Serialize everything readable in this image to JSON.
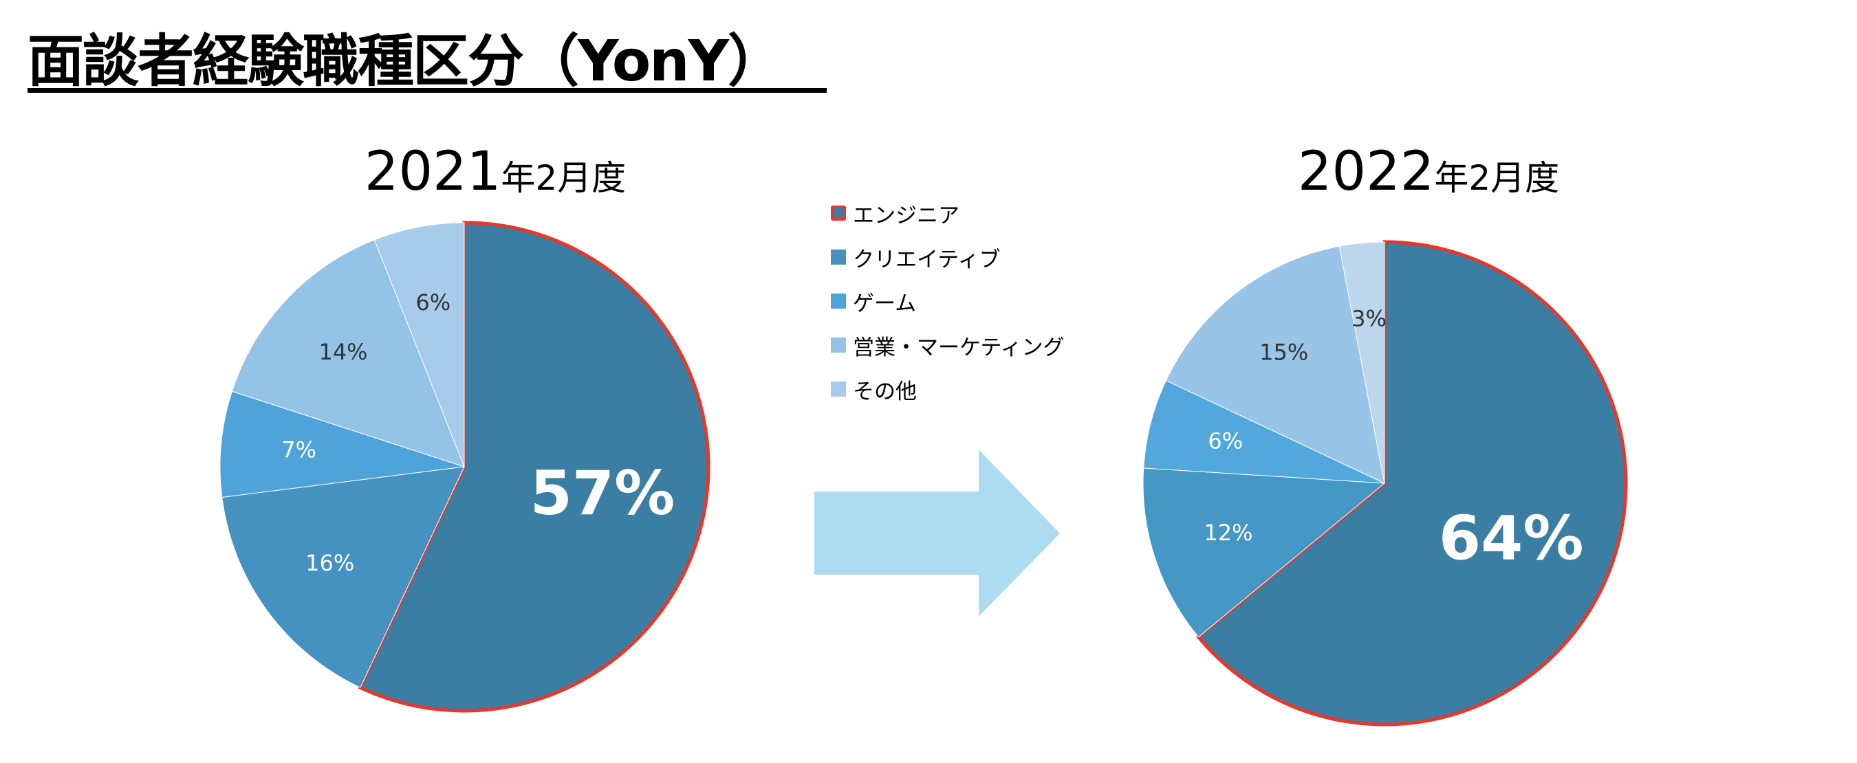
{
  "title": "面談者経験職種区分（YonY）",
  "legend": [
    {
      "label": "エンジニア",
      "color": "#3a7ea3",
      "highlight": "#e8372a"
    },
    {
      "label": "クリエイティブ",
      "color": "#4591c0"
    },
    {
      "label": "ゲーム",
      "color": "#4ea3d8"
    },
    {
      "label": "営業・マーケティング",
      "color": "#93c3e6"
    },
    {
      "label": "その他",
      "color": "#a7cbea"
    }
  ],
  "chart_data": [
    {
      "type": "pie",
      "title_year": "2021",
      "title_suffix": "年2月度",
      "categories": [
        "エンジニア",
        "クリエイティブ",
        "ゲーム",
        "営業・マーケティング",
        "その他"
      ],
      "values": [
        57,
        16,
        7,
        14,
        6
      ],
      "labels": [
        "57%",
        "16%",
        "7%",
        "14%",
        "6%"
      ],
      "colors": [
        "#3a7ea3",
        "#4591c0",
        "#4ea3d8",
        "#93c3e6",
        "#a7cbea"
      ],
      "highlighted": "エンジニア"
    },
    {
      "type": "pie",
      "title_year": "2022",
      "title_suffix": "年2月度",
      "categories": [
        "エンジニア",
        "クリエイティブ",
        "ゲーム",
        "営業・マーケティング",
        "その他"
      ],
      "values": [
        64,
        12,
        6,
        15,
        3
      ],
      "labels": [
        "64%",
        "12%",
        "6%",
        "15%",
        "3%"
      ],
      "colors": [
        "#3a7ea3",
        "#4597c5",
        "#52a8dd",
        "#97c4e7",
        "#bcd6ee"
      ],
      "highlighted": "エンジニア"
    }
  ],
  "arrow_color": "#addcf0",
  "highlight_color": "#e8372a"
}
